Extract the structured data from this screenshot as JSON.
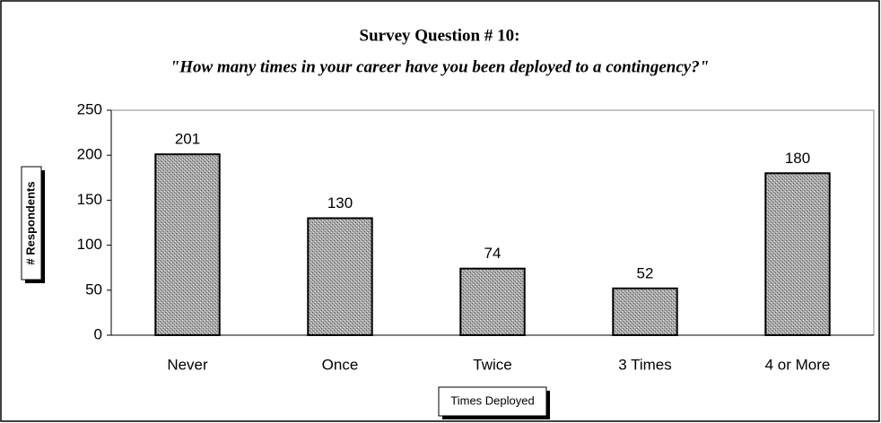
{
  "chart_data": {
    "type": "bar",
    "title": "Survey Question # 10:",
    "subtitle": "\"How many  times in your career have you been deployed to a contingency?\"",
    "y_label": "# Respondents",
    "x_label": "Times Deployed",
    "categories": [
      "Never",
      "Once",
      "Twice",
      "3 Times",
      "4 or More"
    ],
    "values": [
      201,
      130,
      74,
      52,
      180
    ],
    "color": "#9c9c9c",
    "ylim": [
      0,
      250
    ],
    "yticks": [
      0,
      50,
      100,
      150,
      200,
      250
    ],
    "grid": false
  }
}
